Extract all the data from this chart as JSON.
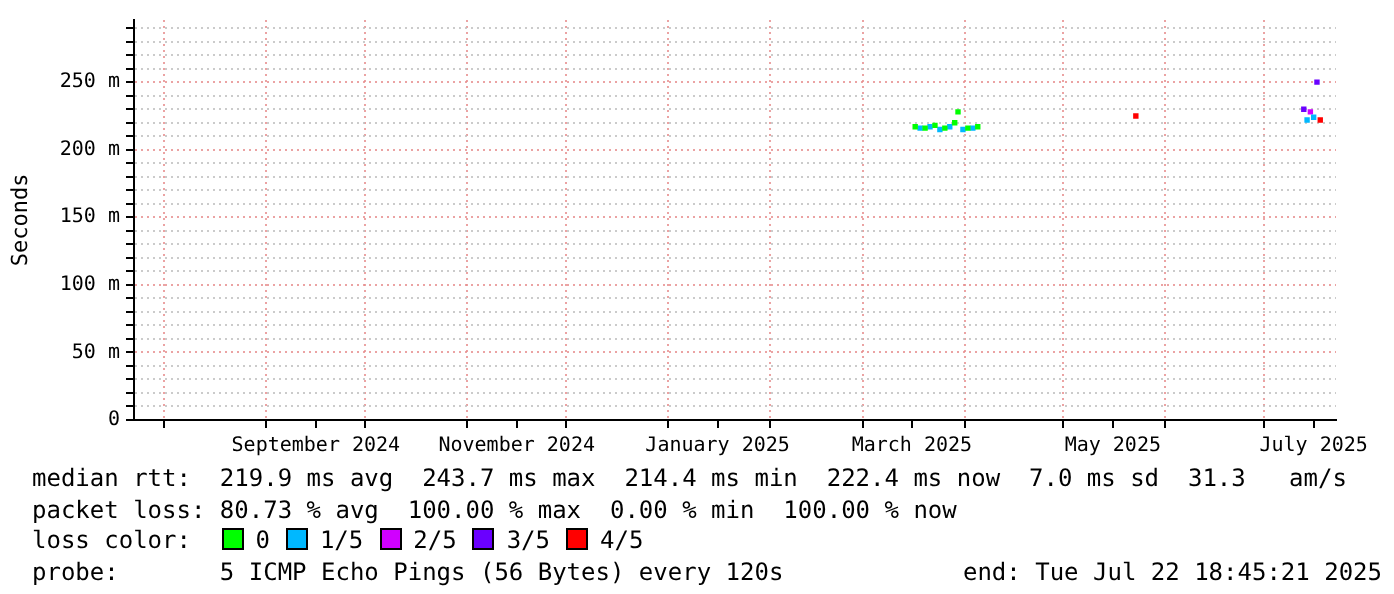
{
  "chart_data": {
    "type": "scatter",
    "ylabel": "Seconds",
    "legend_title": "loss color:",
    "legend": "bottom",
    "grid": true,
    "marker": "square",
    "xlim": [
      "2024-07-22T18:45",
      "2025-07-22T18:45"
    ],
    "xticks": [
      {
        "value": "2024-08-01",
        "label": null
      },
      {
        "value": "2024-09-01",
        "label": null
      },
      {
        "value": "2024-09-16",
        "label": "September 2024"
      },
      {
        "value": "2024-10-01",
        "label": null
      },
      {
        "value": "2024-11-01",
        "label": null
      },
      {
        "value": "2024-11-16",
        "label": "November 2024"
      },
      {
        "value": "2024-12-01",
        "label": null
      },
      {
        "value": "2025-01-01",
        "label": null
      },
      {
        "value": "2025-01-16",
        "label": "January 2025"
      },
      {
        "value": "2025-02-01",
        "label": null
      },
      {
        "value": "2025-03-01",
        "label": null
      },
      {
        "value": "2025-03-16",
        "label": "March 2025"
      },
      {
        "value": "2025-04-01",
        "label": null
      },
      {
        "value": "2025-05-01",
        "label": null
      },
      {
        "value": "2025-05-16",
        "label": "May 2025"
      },
      {
        "value": "2025-06-01",
        "label": null
      },
      {
        "value": "2025-07-01",
        "label": null
      },
      {
        "value": "2025-07-16",
        "label": "July 2025"
      }
    ],
    "ylim": [
      0,
      296
    ],
    "yticks": [
      {
        "value": 0,
        "label": "0"
      },
      {
        "value": 10,
        "label": null
      },
      {
        "value": 20,
        "label": null
      },
      {
        "value": 30,
        "label": null
      },
      {
        "value": 40,
        "label": null
      },
      {
        "value": 50,
        "label": "50 m"
      },
      {
        "value": 60,
        "label": null
      },
      {
        "value": 70,
        "label": null
      },
      {
        "value": 80,
        "label": null
      },
      {
        "value": 90,
        "label": null
      },
      {
        "value": 100,
        "label": "100 m"
      },
      {
        "value": 110,
        "label": null
      },
      {
        "value": 120,
        "label": null
      },
      {
        "value": 130,
        "label": null
      },
      {
        "value": 140,
        "label": null
      },
      {
        "value": 150,
        "label": "150 m"
      },
      {
        "value": 160,
        "label": null
      },
      {
        "value": 170,
        "label": null
      },
      {
        "value": 180,
        "label": null
      },
      {
        "value": 190,
        "label": null
      },
      {
        "value": 200,
        "label": "200 m"
      },
      {
        "value": 210,
        "label": null
      },
      {
        "value": 220,
        "label": null
      },
      {
        "value": 230,
        "label": null
      },
      {
        "value": 240,
        "label": null
      },
      {
        "value": 250,
        "label": "250 m"
      },
      {
        "value": 260,
        "label": null
      },
      {
        "value": 270,
        "label": null
      },
      {
        "value": 280,
        "label": null
      },
      {
        "value": 290,
        "label": null
      }
    ],
    "series": [
      {
        "name": "0",
        "color": "#00ff00",
        "x": [
          "2025-03-17",
          "2025-03-20",
          "2025-03-23",
          "2025-03-26",
          "2025-03-29",
          "2025-03-30",
          "2025-04-02",
          "2025-04-05"
        ],
        "values": [
          217,
          216,
          218,
          216,
          220,
          228,
          216,
          217
        ]
      },
      {
        "name": "1/5",
        "color": "#00b8ff",
        "x": [
          "2025-03-18T12:00",
          "2025-03-21T12:00",
          "2025-03-24T12:00",
          "2025-03-27T12:00",
          "2025-03-31T12:00",
          "2025-04-03T12:00",
          "2025-07-14",
          "2025-07-16"
        ],
        "values": [
          216,
          217,
          215,
          217,
          215,
          216,
          222,
          224
        ]
      },
      {
        "name": "2/5",
        "color": "#d000ff",
        "x": [
          "2025-07-15"
        ],
        "values": [
          228
        ]
      },
      {
        "name": "3/5",
        "color": "#6a00ff",
        "x": [
          "2025-07-13",
          "2025-07-17"
        ],
        "values": [
          230,
          250
        ]
      },
      {
        "name": "4/5",
        "color": "#ff0000",
        "x": [
          "2025-05-23",
          "2025-07-18"
        ],
        "values": [
          225,
          222
        ]
      }
    ],
    "annotations": [
      "median rtt:  219.9 ms avg  243.7 ms max  214.4 ms min  222.4 ms now  7.0 ms sd  31.3   am/s",
      "packet loss: 80.73 % avg  100.00 % max  0.00 % min  100.00 % now",
      "probe:       5 ICMP Echo Pings (56 Bytes) every 120s",
      "end: Tue Jul 22 18:45:21 2025"
    ]
  }
}
